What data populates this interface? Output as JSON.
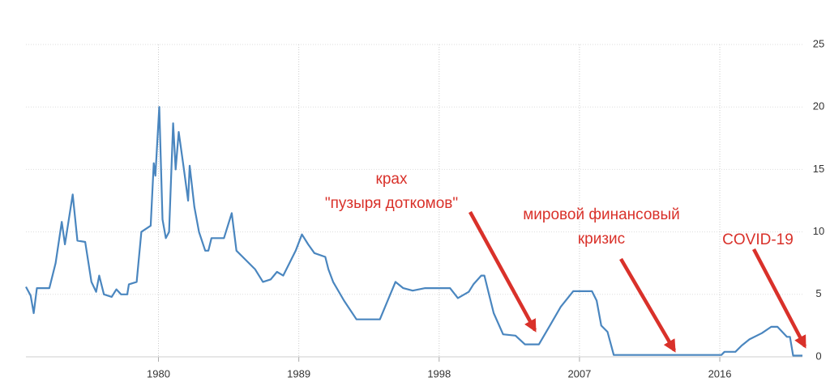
{
  "chart_data": {
    "type": "line",
    "x": [
      1971.5,
      1971.8,
      1972.0,
      1972.2,
      1973.0,
      1973.4,
      1973.8,
      1974.0,
      1974.5,
      1974.8,
      1975.3,
      1975.7,
      1976.0,
      1976.2,
      1976.5,
      1977.0,
      1977.3,
      1977.6,
      1978.0,
      1978.1,
      1978.6,
      1978.9,
      1979.5,
      1979.7,
      1979.8,
      1980.05,
      1980.26,
      1980.47,
      1980.68,
      1980.94,
      1981.1,
      1981.3,
      1981.6,
      1981.9,
      1982.0,
      1982.3,
      1982.6,
      1983.0,
      1983.2,
      1983.4,
      1984.2,
      1984.7,
      1985.0,
      1985.4,
      1986.2,
      1986.7,
      1987.2,
      1987.6,
      1988.0,
      1988.4,
      1988.8,
      1989.2,
      1989.6,
      1990.0,
      1990.7,
      1990.9,
      1991.2,
      1991.9,
      1992.7,
      1994.2,
      1994.7,
      1995.2,
      1995.7,
      1996.3,
      1997.1,
      1998.7,
      1999.2,
      1999.9,
      2000.2,
      2000.7,
      2000.9,
      2001.2,
      2001.5,
      2002.1,
      2002.9,
      2003.5,
      2004.4,
      2005.1,
      2005.8,
      2006.6,
      2007.8,
      2008.1,
      2008.4,
      2008.8,
      2009.2,
      2016.1,
      2016.3,
      2017.0,
      2017.4,
      2017.9,
      2018.7,
      2019.3,
      2019.7,
      2020.3,
      2020.5,
      2020.7,
      2021.3
    ],
    "series": [
      {
        "color": "#4a86bf",
        "values": [
          5.6,
          4.9,
          3.5,
          5.5,
          5.5,
          7.5,
          10.8,
          9.0,
          13.0,
          9.3,
          9.2,
          6.0,
          5.2,
          6.5,
          5.0,
          4.8,
          5.4,
          5.0,
          5.0,
          5.8,
          6.0,
          10.0,
          10.5,
          15.5,
          14.5,
          20.0,
          11.0,
          9.5,
          10.0,
          18.7,
          15.0,
          18.0,
          15.3,
          12.5,
          15.3,
          12.0,
          10.0,
          8.5,
          8.5,
          9.5,
          9.5,
          11.5,
          8.5,
          8.0,
          7.0,
          6.0,
          6.2,
          6.8,
          6.5,
          7.5,
          8.5,
          9.8,
          9.0,
          8.3,
          8.0,
          7.0,
          6.0,
          4.5,
          3.0,
          3.0,
          4.5,
          6.0,
          5.5,
          5.3,
          5.5,
          5.5,
          4.7,
          5.2,
          5.8,
          6.5,
          6.5,
          5.0,
          3.5,
          1.8,
          1.7,
          1.0,
          1.0,
          2.5,
          4.0,
          5.25,
          5.25,
          4.5,
          2.5,
          2.0,
          0.15,
          0.15,
          0.4,
          0.4,
          0.9,
          1.4,
          1.9,
          2.4,
          2.4,
          1.6,
          1.6,
          0.1,
          0.1
        ]
      }
    ],
    "xlim": [
      1971.5,
      2021.3
    ],
    "xticks": [
      1980,
      1989,
      1998,
      2007,
      2016
    ],
    "ylim": [
      0,
      25
    ],
    "yticks": [
      0,
      5,
      10,
      15,
      20,
      25
    ],
    "grid": true,
    "annotations": [
      {
        "lines": [
          "крах",
          "\"пузыря доткомов\""
        ],
        "color": "#d9312a"
      },
      {
        "lines": [
          "мировой финансовый",
          "кризис"
        ],
        "color": "#d9312a"
      },
      {
        "lines": [
          "COVID-19"
        ],
        "color": "#d9312a"
      }
    ]
  }
}
